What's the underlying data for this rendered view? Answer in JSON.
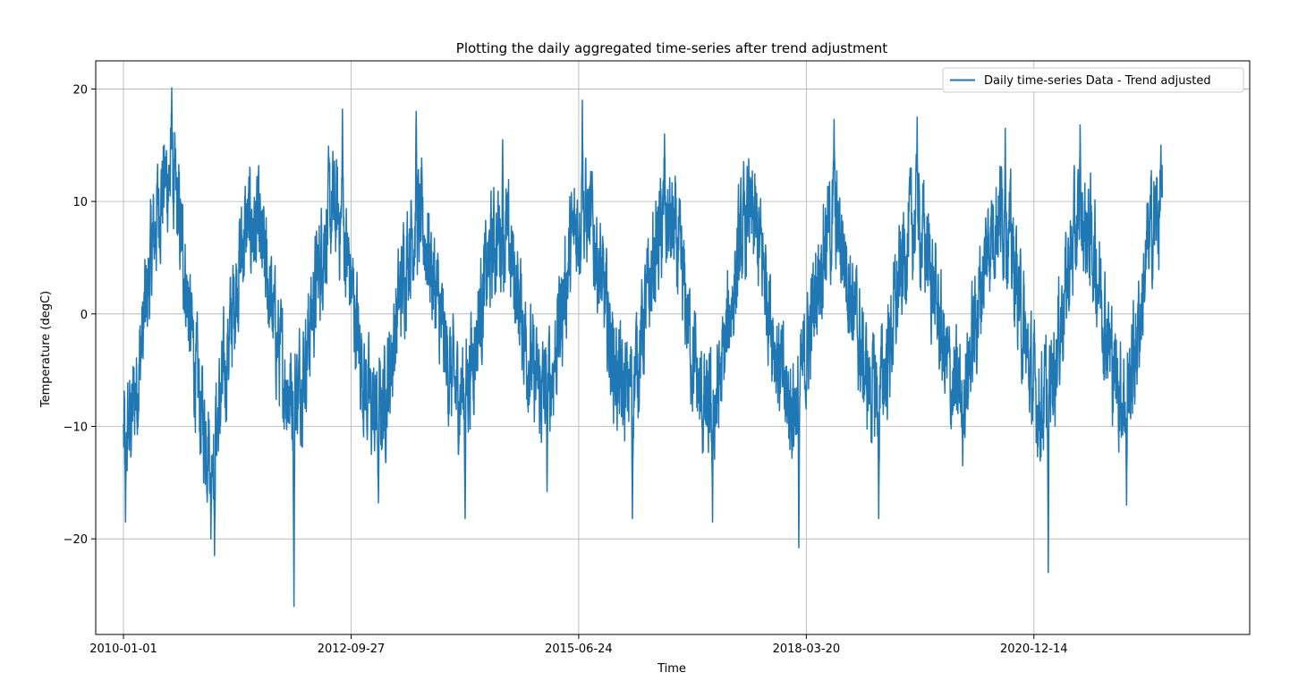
{
  "chart_data": {
    "type": "line",
    "title": "Plotting the daily aggregated time-series after trend adjustment",
    "xlabel": "Time",
    "ylabel": "Temperature (degC)",
    "x_range": [
      "2009-09-01",
      "2023-07-20"
    ],
    "x_ticks": [
      "2010-01-01",
      "2012-09-27",
      "2015-06-24",
      "2018-03-20",
      "2020-12-14"
    ],
    "ylim": [
      -28.5,
      22.5
    ],
    "y_ticks": [
      20,
      10,
      0,
      -10,
      -20
    ],
    "y_tick_labels": [
      "20",
      "10",
      "0",
      "−10",
      "−20"
    ],
    "grid": true,
    "legend_position": "top-right",
    "colors": {
      "line": "#1f77b4",
      "grid": "#b0b0b0",
      "axes": "#000000"
    },
    "series": [
      {
        "name": "Daily time-series Data - Trend adjusted",
        "color": "#1f77b4",
        "seasonal_cycle_points": [
          {
            "date": "2010-01-01",
            "value": -11
          },
          {
            "date": "2010-07-15",
            "value": 12
          },
          {
            "date": "2011-01-15",
            "value": -11
          },
          {
            "date": "2011-07-15",
            "value": 8
          },
          {
            "date": "2012-01-15",
            "value": -7
          },
          {
            "date": "2012-07-15",
            "value": 9
          },
          {
            "date": "2013-01-15",
            "value": -9
          },
          {
            "date": "2013-07-15",
            "value": 8
          },
          {
            "date": "2014-01-15",
            "value": -7
          },
          {
            "date": "2014-07-15",
            "value": 7
          },
          {
            "date": "2015-01-15",
            "value": -7
          },
          {
            "date": "2015-07-15",
            "value": 9
          },
          {
            "date": "2016-01-15",
            "value": -7
          },
          {
            "date": "2016-07-15",
            "value": 8
          },
          {
            "date": "2017-01-15",
            "value": -9
          },
          {
            "date": "2017-07-15",
            "value": 8
          },
          {
            "date": "2018-01-15",
            "value": -8
          },
          {
            "date": "2018-07-15",
            "value": 8
          },
          {
            "date": "2019-01-15",
            "value": -7
          },
          {
            "date": "2019-07-15",
            "value": 8
          },
          {
            "date": "2020-01-15",
            "value": -7
          },
          {
            "date": "2020-07-15",
            "value": 9
          },
          {
            "date": "2021-01-15",
            "value": -8
          },
          {
            "date": "2021-07-15",
            "value": 8
          },
          {
            "date": "2022-01-15",
            "value": -7
          },
          {
            "date": "2022-06-15",
            "value": 9
          }
        ],
        "extreme_points": [
          {
            "date": "2010-01-10",
            "value": -18.5
          },
          {
            "date": "2010-08-01",
            "value": 20.1
          },
          {
            "date": "2011-02-05",
            "value": -21.5
          },
          {
            "date": "2011-01-20",
            "value": -20.0
          },
          {
            "date": "2012-01-20",
            "value": -26.0
          },
          {
            "date": "2012-08-20",
            "value": 18.2
          },
          {
            "date": "2013-01-25",
            "value": -16.8
          },
          {
            "date": "2013-07-10",
            "value": 18.0
          },
          {
            "date": "2014-02-10",
            "value": -18.2
          },
          {
            "date": "2014-07-25",
            "value": 15.5
          },
          {
            "date": "2015-02-05",
            "value": -15.8
          },
          {
            "date": "2015-07-10",
            "value": 19.0
          },
          {
            "date": "2016-02-15",
            "value": -18.2
          },
          {
            "date": "2016-07-05",
            "value": 16.0
          },
          {
            "date": "2017-02-01",
            "value": -18.5
          },
          {
            "date": "2017-07-10",
            "value": 13.8
          },
          {
            "date": "2018-02-15",
            "value": -20.8
          },
          {
            "date": "2018-07-20",
            "value": 17.3
          },
          {
            "date": "2019-02-01",
            "value": -18.2
          },
          {
            "date": "2019-07-20",
            "value": 17.5
          },
          {
            "date": "2020-02-05",
            "value": -13.5
          },
          {
            "date": "2020-08-10",
            "value": 16.5
          },
          {
            "date": "2021-02-15",
            "value": -23.0
          },
          {
            "date": "2021-07-05",
            "value": 16.8
          },
          {
            "date": "2022-01-25",
            "value": -17.0
          },
          {
            "date": "2022-06-25",
            "value": 15.0
          }
        ],
        "last_date": "2022-07-01",
        "day_to_day_noise_amplitude": 3.5
      }
    ]
  }
}
